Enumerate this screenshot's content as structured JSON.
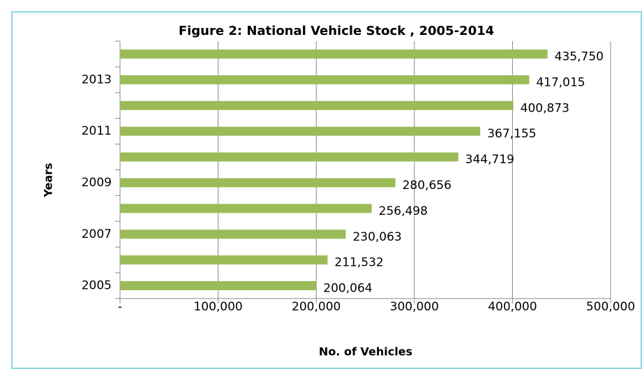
{
  "chart_data": {
    "type": "bar",
    "orientation": "horizontal",
    "title": "Figure 2: National Vehicle Stock , 2005-2014",
    "x_label": "No. of Vehicles",
    "y_label": "Years",
    "categories": [
      "2005",
      null,
      "2007",
      null,
      "2009",
      null,
      "2011",
      null,
      "2013",
      null
    ],
    "values": [
      200064,
      211532,
      230063,
      256498,
      280656,
      344719,
      367155,
      400873,
      417015,
      435750
    ],
    "value_labels": [
      "200,064",
      "211,532",
      "230,063",
      "256,498",
      "280,656",
      "344,719",
      "367,155",
      "400,873",
      "417,015",
      "435,750"
    ],
    "color": "#9bbb59",
    "xlim": [
      0,
      500000
    ],
    "xticks": [
      {
        "value": 0,
        "label": "-"
      },
      {
        "value": 100000,
        "label": "100,000"
      },
      {
        "value": 200000,
        "label": "200,000"
      },
      {
        "value": 300000,
        "label": "300,000"
      },
      {
        "value": 400000,
        "label": "400,000"
      },
      {
        "value": 500000,
        "label": "500,000"
      }
    ],
    "grid": true
  }
}
